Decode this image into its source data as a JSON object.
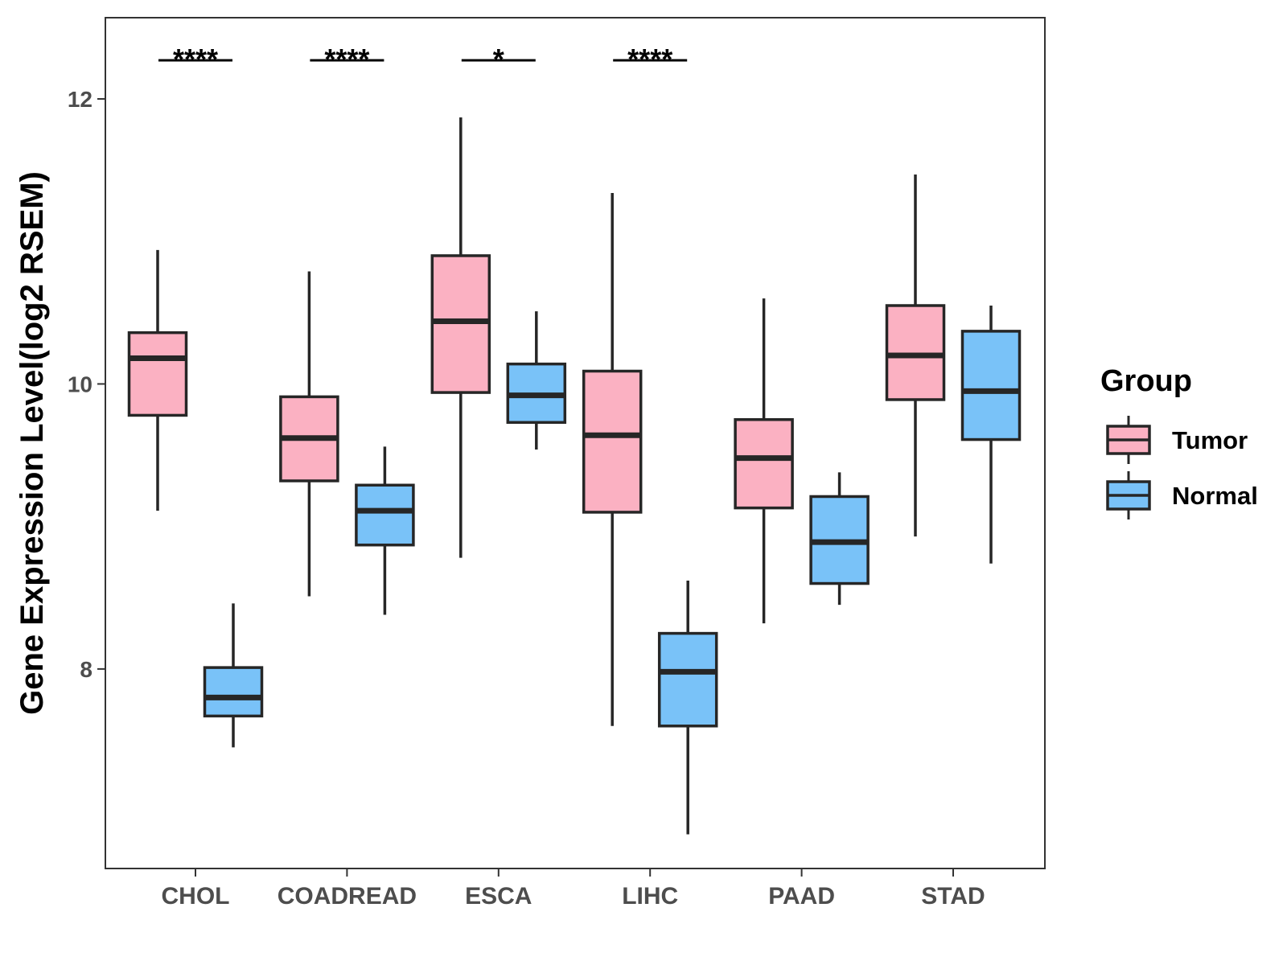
{
  "chart_data": {
    "type": "boxplot",
    "title": "",
    "xlabel": "",
    "ylabel": "Gene Expression Level(log2 RSEM)",
    "ylim": [
      6.6,
      12.57
    ],
    "yticks": [
      8,
      10,
      12
    ],
    "ytick_labels": [
      "8",
      "10",
      "12"
    ],
    "categories": [
      "CHOL",
      "COADREAD",
      "ESCA",
      "LIHC",
      "PAAD",
      "STAD"
    ],
    "legend": {
      "title": "Group",
      "position": "right",
      "entries": [
        "Tumor",
        "Normal"
      ]
    },
    "series": [
      {
        "name": "Tumor",
        "color": "#FBB1C2",
        "boxes": [
          {
            "category": "CHOL",
            "whisker_low": 9.11,
            "q1": 9.78,
            "median": 10.18,
            "q3": 10.36,
            "whisker_high": 10.94
          },
          {
            "category": "COADREAD",
            "whisker_low": 8.51,
            "q1": 9.32,
            "median": 9.62,
            "q3": 9.91,
            "whisker_high": 10.79
          },
          {
            "category": "ESCA",
            "whisker_low": 8.78,
            "q1": 9.94,
            "median": 10.44,
            "q3": 10.9,
            "whisker_high": 11.87
          },
          {
            "category": "LIHC",
            "whisker_low": 7.6,
            "q1": 9.1,
            "median": 9.64,
            "q3": 10.09,
            "whisker_high": 11.34
          },
          {
            "category": "PAAD",
            "whisker_low": 8.32,
            "q1": 9.13,
            "median": 9.48,
            "q3": 9.75,
            "whisker_high": 10.6
          },
          {
            "category": "STAD",
            "whisker_low": 8.93,
            "q1": 9.89,
            "median": 10.2,
            "q3": 10.55,
            "whisker_high": 11.47
          }
        ]
      },
      {
        "name": "Normal",
        "color": "#79C2F8",
        "boxes": [
          {
            "category": "CHOL",
            "whisker_low": 7.45,
            "q1": 7.67,
            "median": 7.8,
            "q3": 8.01,
            "whisker_high": 8.46
          },
          {
            "category": "COADREAD",
            "whisker_low": 8.38,
            "q1": 8.87,
            "median": 9.11,
            "q3": 9.29,
            "whisker_high": 9.56
          },
          {
            "category": "ESCA",
            "whisker_low": 9.54,
            "q1": 9.73,
            "median": 9.92,
            "q3": 10.14,
            "whisker_high": 10.51
          },
          {
            "category": "LIHC",
            "whisker_low": 6.84,
            "q1": 7.6,
            "median": 7.98,
            "q3": 8.25,
            "whisker_high": 8.62
          },
          {
            "category": "PAAD",
            "whisker_low": 8.45,
            "q1": 8.6,
            "median": 8.89,
            "q3": 9.21,
            "whisker_high": 9.38
          },
          {
            "category": "STAD",
            "whisker_low": 8.74,
            "q1": 9.61,
            "median": 9.95,
            "q3": 10.37,
            "whisker_high": 10.55
          }
        ]
      }
    ],
    "significance": [
      {
        "category": "CHOL",
        "label": "****"
      },
      {
        "category": "COADREAD",
        "label": "****"
      },
      {
        "category": "ESCA",
        "label": "*"
      },
      {
        "category": "LIHC",
        "label": "****"
      }
    ]
  }
}
